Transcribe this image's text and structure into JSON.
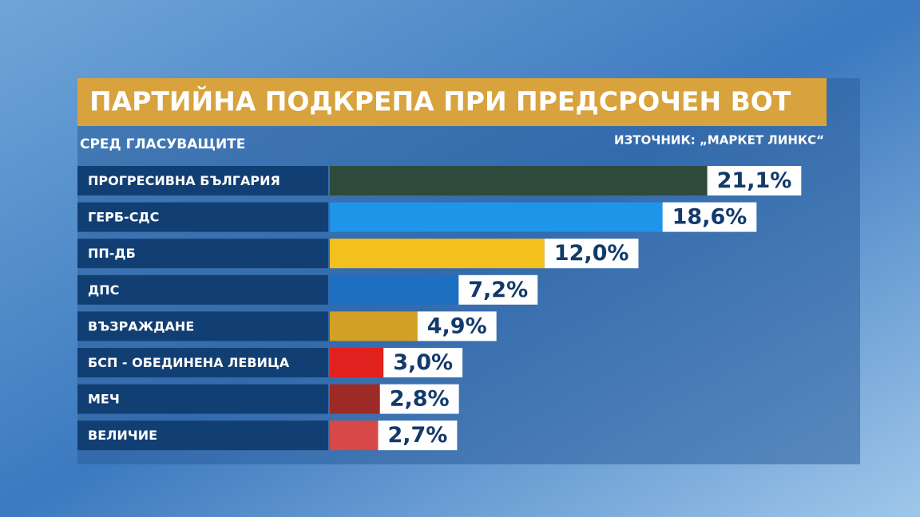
{
  "chart_data": {
    "type": "bar",
    "orientation": "horizontal",
    "title": "ПАРТИЙНА ПОДКРЕПА ПРИ ПРЕДСРОЧЕН ВОТ",
    "subtitle": "СРЕД ГЛАСУВАЩИТЕ",
    "source": "ИЗТОЧНИК: „МАРКЕТ ЛИНКС“",
    "categories": [
      "ПРОГРЕСИВНА БЪЛГАРИЯ",
      "ГЕРБ-СДС",
      "ПП-ДБ",
      "ДПС",
      "ВЪЗРАЖДАНЕ",
      "БСП - ОБЕДИНЕНА ЛЕВИЦА",
      "МЕЧ",
      "ВЕЛИЧИЕ"
    ],
    "values": [
      21.1,
      18.6,
      12.0,
      7.2,
      4.9,
      3.0,
      2.8,
      2.7
    ],
    "value_labels": [
      "21,1%",
      "18,6%",
      "12,0%",
      "7,2%",
      "4,9%",
      "3,0%",
      "2,8%",
      "2,7%"
    ],
    "colors": [
      "#2e4a3a",
      "#1f95ea",
      "#f2c11d",
      "#1d6fc2",
      "#d2a024",
      "#e0211d",
      "#9e2a27",
      "#d84848"
    ]
  }
}
